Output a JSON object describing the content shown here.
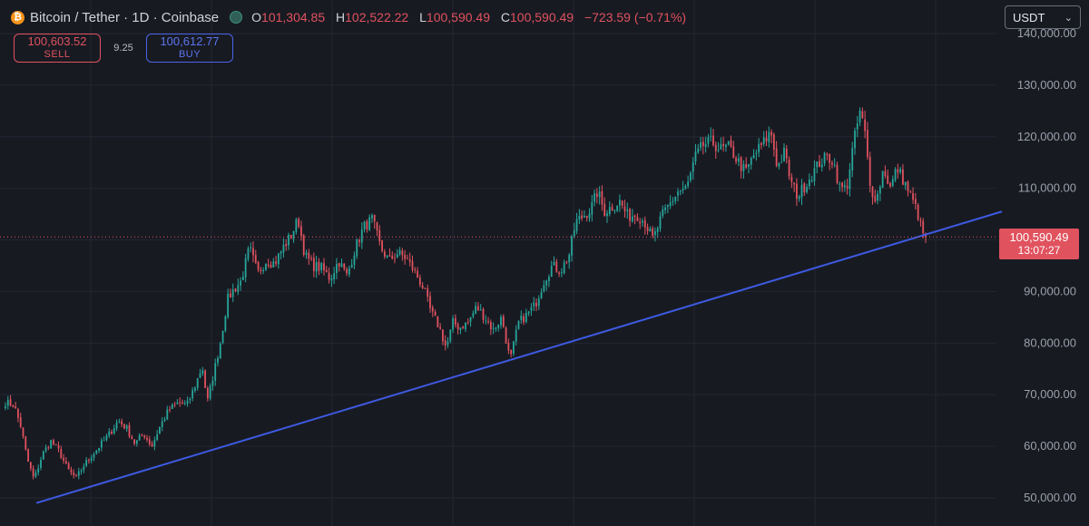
{
  "header": {
    "title": "Bitcoin / Tether · 1D · Coinbase",
    "logo_icon": "bitcoin-logo-icon",
    "logo_glyph": "₿",
    "ohlc": [
      {
        "key": "O",
        "value": "101,304.85"
      },
      {
        "key": "H",
        "value": "102,522.22"
      },
      {
        "key": "L",
        "value": "100,590.49"
      },
      {
        "key": "C",
        "value": "100,590.49"
      }
    ],
    "change": "−723.59 (−0.71%)"
  },
  "trade": {
    "sell_price": "100,603.52",
    "sell_label": "SELL",
    "spread": "9.25",
    "buy_price": "100,612.77",
    "buy_label": "BUY"
  },
  "currency": {
    "selected": "USDT",
    "chevron_icon": "chevron-down-icon"
  },
  "last_price": {
    "price": "100,590.49",
    "countdown": "13:07:27"
  },
  "colors": {
    "up": "#26a69a",
    "down": "#e0525e",
    "trendline": "#3d5ae0",
    "background": "#181a22",
    "grid": "#232631"
  },
  "chart_data": {
    "type": "candlestick",
    "y_axis_labels": [
      "50,000.00",
      "60,000.00",
      "70,000.00",
      "80,000.00",
      "90,000.00",
      "100,000.00",
      "110,000.00",
      "120,000.00",
      "130,000.00",
      "140,000.00"
    ],
    "y_ticks": [
      50000,
      60000,
      70000,
      80000,
      90000,
      100000,
      110000,
      120000,
      130000,
      140000
    ],
    "ylim": [
      48000,
      143000
    ],
    "grid": true,
    "approx_days": 365,
    "close_anchors": [
      [
        0,
        68500
      ],
      [
        5,
        68000
      ],
      [
        9,
        64000
      ],
      [
        13,
        57500
      ],
      [
        17,
        53500
      ],
      [
        22,
        58500
      ],
      [
        27,
        61000
      ],
      [
        32,
        59000
      ],
      [
        37,
        55500
      ],
      [
        42,
        53800
      ],
      [
        47,
        56500
      ],
      [
        52,
        58500
      ],
      [
        57,
        60500
      ],
      [
        62,
        62500
      ],
      [
        67,
        65000
      ],
      [
        72,
        63500
      ],
      [
        77,
        60500
      ],
      [
        82,
        62500
      ],
      [
        87,
        60000
      ],
      [
        92,
        64000
      ],
      [
        97,
        67000
      ],
      [
        103,
        68500
      ],
      [
        108,
        68000
      ],
      [
        113,
        72000
      ],
      [
        117,
        75500
      ],
      [
        120,
        68500
      ],
      [
        124,
        74500
      ],
      [
        128,
        80500
      ],
      [
        132,
        88500
      ],
      [
        136,
        90500
      ],
      [
        140,
        92000
      ],
      [
        145,
        98500
      ],
      [
        150,
        93500
      ],
      [
        155,
        96000
      ],
      [
        160,
        95500
      ],
      [
        165,
        98500
      ],
      [
        170,
        101000
      ],
      [
        174,
        104000
      ],
      [
        178,
        97000
      ],
      [
        183,
        95000
      ],
      [
        188,
        94500
      ],
      [
        193,
        92500
      ],
      [
        198,
        96000
      ],
      [
        203,
        93000
      ],
      [
        208,
        98500
      ],
      [
        213,
        102500
      ],
      [
        218,
        104000
      ],
      [
        223,
        98500
      ],
      [
        228,
        96000
      ],
      [
        233,
        97500
      ],
      [
        238,
        96500
      ],
      [
        243,
        94000
      ],
      [
        248,
        91000
      ],
      [
        253,
        86000
      ],
      [
        258,
        83000
      ],
      [
        262,
        79000
      ],
      [
        266,
        84000
      ],
      [
        270,
        83000
      ],
      [
        275,
        84000
      ],
      [
        280,
        87000
      ],
      [
        285,
        85000
      ],
      [
        290,
        82500
      ],
      [
        295,
        85000
      ],
      [
        300,
        76500
      ],
      [
        305,
        84000
      ],
      [
        310,
        85500
      ],
      [
        315,
        87500
      ],
      [
        320,
        92000
      ],
      [
        325,
        95000
      ],
      [
        330,
        94000
      ],
      [
        335,
        97000
      ],
      [
        339,
        103500
      ],
      [
        343,
        104500
      ],
      [
        348,
        106000
      ],
      [
        352,
        109500
      ],
      [
        356,
        105500
      ],
      [
        361,
        106500
      ],
      [
        365,
        107500
      ],
      [
        370,
        104500
      ],
      [
        375,
        105000
      ],
      [
        380,
        103500
      ],
      [
        385,
        100000
      ],
      [
        390,
        104500
      ],
      [
        395,
        107000
      ],
      [
        400,
        109500
      ],
      [
        405,
        110000
      ],
      [
        410,
        116000
      ],
      [
        415,
        118500
      ],
      [
        420,
        119000
      ],
      [
        425,
        117500
      ],
      [
        430,
        118000
      ],
      [
        435,
        115500
      ],
      [
        440,
        113000
      ],
      [
        445,
        116500
      ],
      [
        450,
        118500
      ],
      [
        455,
        121000
      ],
      [
        459,
        114000
      ],
      [
        463,
        117000
      ],
      [
        467,
        111000
      ],
      [
        471,
        108500
      ],
      [
        475,
        110500
      ],
      [
        479,
        112500
      ],
      [
        484,
        115000
      ],
      [
        488,
        116000
      ],
      [
        492,
        115500
      ],
      [
        496,
        110000
      ],
      [
        500,
        110000
      ],
      [
        504,
        118500
      ],
      [
        508,
        125000
      ],
      [
        511,
        120500
      ],
      [
        514,
        110000
      ],
      [
        518,
        108000
      ],
      [
        522,
        114000
      ],
      [
        526,
        110000
      ],
      [
        530,
        114000
      ],
      [
        534,
        111500
      ],
      [
        538,
        108500
      ],
      [
        542,
        105500
      ],
      [
        545,
        101500
      ],
      [
        547,
        100590.49
      ]
    ],
    "trendline": {
      "start_y": 49000,
      "end_y": 105500
    },
    "last_close": 100590.49
  }
}
